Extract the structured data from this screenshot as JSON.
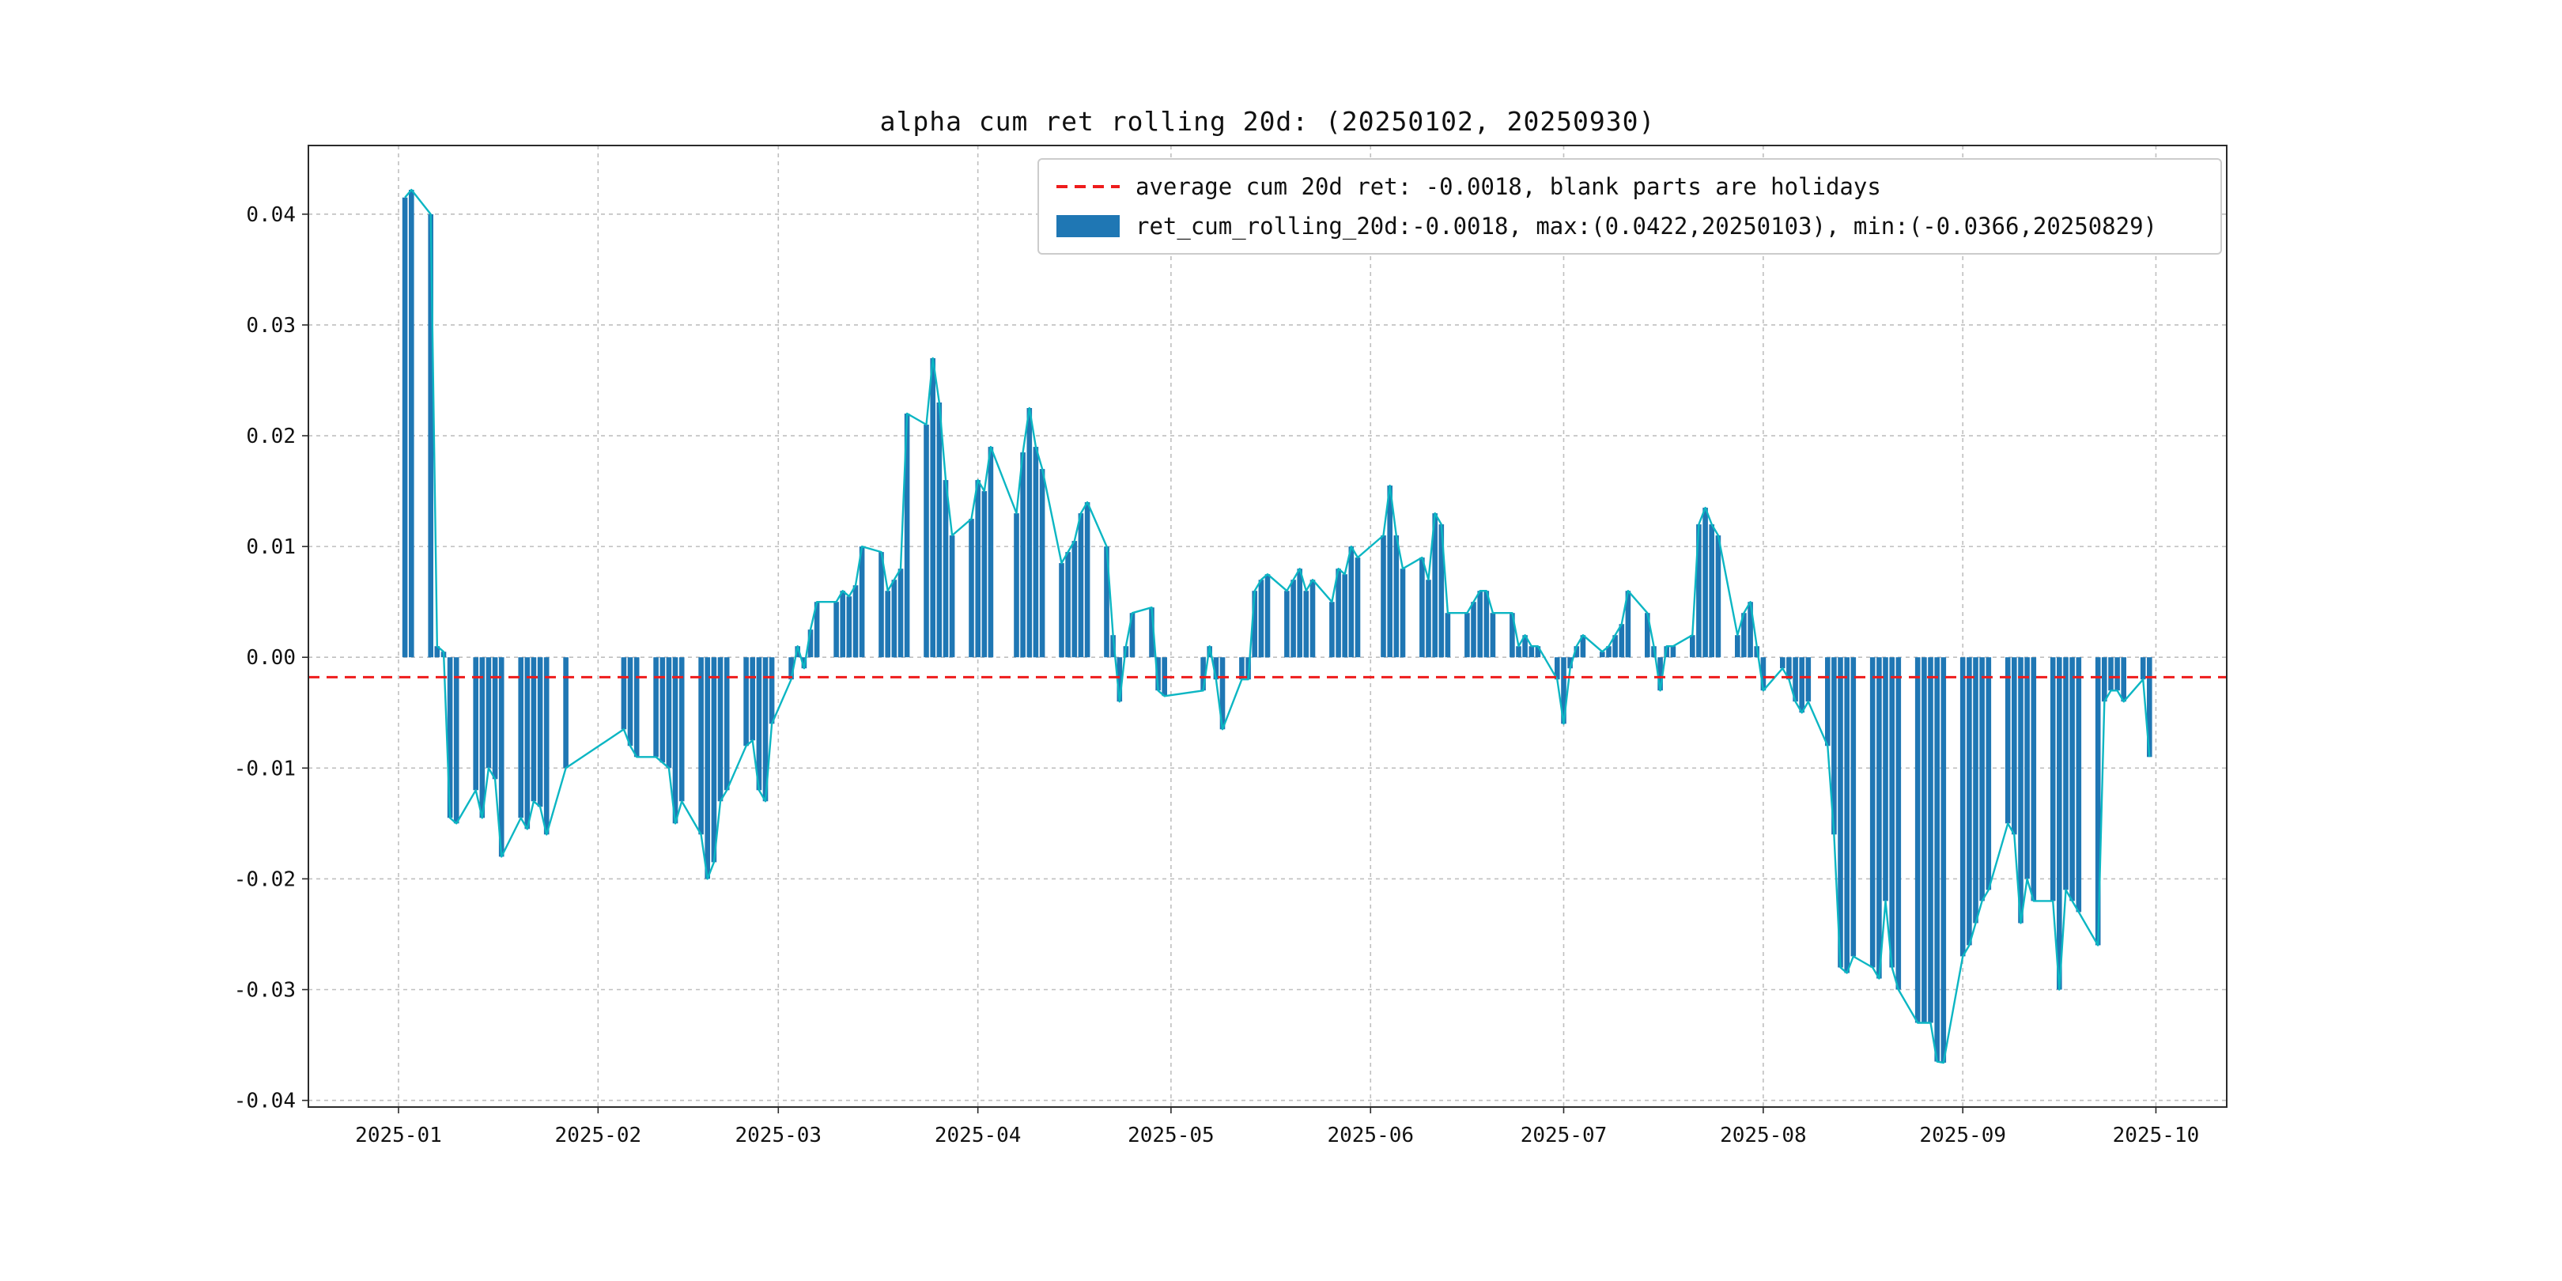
{
  "page": {
    "background": "#ffffff"
  },
  "chart_data": {
    "type": "bar",
    "title": "alpha cum ret rolling 20d: (20250102, 20250930)",
    "legend": [
      {
        "label": "average cum 20d ret: -0.0018, blank parts are holidays",
        "style": "dashed-line",
        "color": "#ee1c1c"
      },
      {
        "label": "ret_cum_rolling_20d:-0.0018, max:(0.0422,20250103), min:(-0.0366,20250829)",
        "style": "bar",
        "color": "#1f77b4"
      }
    ],
    "average": -0.0018,
    "max": {
      "value": 0.0422,
      "date": "20250103"
    },
    "min": {
      "value": -0.0366,
      "date": "20250829"
    },
    "bar_color": "#1f77b4",
    "line_color": "#0cb6c3",
    "avg_line_color": "#ee1c1c",
    "grid_color": "#bfbfbf",
    "spine_color": "#2b2b2b",
    "ylim": [
      -0.0406,
      0.0462
    ],
    "x_start": "2024-12-18",
    "x_total_days": 298,
    "y_ticks": [
      -0.04,
      -0.03,
      -0.02,
      -0.01,
      0,
      0.01,
      0.02,
      0.03,
      0.04
    ],
    "x_ticks": [
      {
        "date": "2025-01-01",
        "label": "2025-01"
      },
      {
        "date": "2025-02-01",
        "label": "2025-02"
      },
      {
        "date": "2025-03-01",
        "label": "2025-03"
      },
      {
        "date": "2025-04-01",
        "label": "2025-04"
      },
      {
        "date": "2025-05-01",
        "label": "2025-05"
      },
      {
        "date": "2025-06-01",
        "label": "2025-06"
      },
      {
        "date": "2025-07-01",
        "label": "2025-07"
      },
      {
        "date": "2025-08-01",
        "label": "2025-08"
      },
      {
        "date": "2025-09-01",
        "label": "2025-09"
      },
      {
        "date": "2025-10-01",
        "label": "2025-10"
      }
    ],
    "points": [
      [
        "2025-01-02",
        0.0415
      ],
      [
        "2025-01-03",
        0.0422
      ],
      [
        "2025-01-06",
        0.04
      ],
      [
        "2025-01-07",
        0.001
      ],
      [
        "2025-01-08",
        0.0005
      ],
      [
        "2025-01-09",
        -0.0145
      ],
      [
        "2025-01-10",
        -0.015
      ],
      [
        "2025-01-13",
        -0.012
      ],
      [
        "2025-01-14",
        -0.0145
      ],
      [
        "2025-01-15",
        -0.01
      ],
      [
        "2025-01-16",
        -0.011
      ],
      [
        "2025-01-17",
        -0.018
      ],
      [
        "2025-01-20",
        -0.0145
      ],
      [
        "2025-01-21",
        -0.0155
      ],
      [
        "2025-01-22",
        -0.013
      ],
      [
        "2025-01-23",
        -0.0135
      ],
      [
        "2025-01-24",
        -0.016
      ],
      [
        "2025-01-27",
        -0.01
      ],
      [
        "2025-02-05",
        -0.0065
      ],
      [
        "2025-02-06",
        -0.008
      ],
      [
        "2025-02-07",
        -0.009
      ],
      [
        "2025-02-10",
        -0.009
      ],
      [
        "2025-02-11",
        -0.0095
      ],
      [
        "2025-02-12",
        -0.01
      ],
      [
        "2025-02-13",
        -0.015
      ],
      [
        "2025-02-14",
        -0.013
      ],
      [
        "2025-02-17",
        -0.016
      ],
      [
        "2025-02-18",
        -0.02
      ],
      [
        "2025-02-19",
        -0.0185
      ],
      [
        "2025-02-20",
        -0.013
      ],
      [
        "2025-02-21",
        -0.012
      ],
      [
        "2025-02-24",
        -0.008
      ],
      [
        "2025-02-25",
        -0.0075
      ],
      [
        "2025-02-26",
        -0.012
      ],
      [
        "2025-02-27",
        -0.013
      ],
      [
        "2025-02-28",
        -0.006
      ],
      [
        "2025-03-03",
        -0.002
      ],
      [
        "2025-03-04",
        0.001
      ],
      [
        "2025-03-05",
        -0.001
      ],
      [
        "2025-03-06",
        0.0025
      ],
      [
        "2025-03-07",
        0.005
      ],
      [
        "2025-03-10",
        0.005
      ],
      [
        "2025-03-11",
        0.006
      ],
      [
        "2025-03-12",
        0.0055
      ],
      [
        "2025-03-13",
        0.0065
      ],
      [
        "2025-03-14",
        0.01
      ],
      [
        "2025-03-17",
        0.0095
      ],
      [
        "2025-03-18",
        0.006
      ],
      [
        "2025-03-19",
        0.007
      ],
      [
        "2025-03-20",
        0.008
      ],
      [
        "2025-03-21",
        0.022
      ],
      [
        "2025-03-24",
        0.021
      ],
      [
        "2025-03-25",
        0.027
      ],
      [
        "2025-03-26",
        0.023
      ],
      [
        "2025-03-27",
        0.016
      ],
      [
        "2025-03-28",
        0.011
      ],
      [
        "2025-03-31",
        0.0125
      ],
      [
        "2025-04-01",
        0.016
      ],
      [
        "2025-04-02",
        0.015
      ],
      [
        "2025-04-03",
        0.019
      ],
      [
        "2025-04-07",
        0.013
      ],
      [
        "2025-04-08",
        0.0185
      ],
      [
        "2025-04-09",
        0.0225
      ],
      [
        "2025-04-10",
        0.019
      ],
      [
        "2025-04-11",
        0.017
      ],
      [
        "2025-04-14",
        0.0085
      ],
      [
        "2025-04-15",
        0.0095
      ],
      [
        "2025-04-16",
        0.0105
      ],
      [
        "2025-04-17",
        0.013
      ],
      [
        "2025-04-18",
        0.014
      ],
      [
        "2025-04-21",
        0.01
      ],
      [
        "2025-04-22",
        0.002
      ],
      [
        "2025-04-23",
        -0.004
      ],
      [
        "2025-04-24",
        0.001
      ],
      [
        "2025-04-25",
        0.004
      ],
      [
        "2025-04-28",
        0.0045
      ],
      [
        "2025-04-29",
        -0.003
      ],
      [
        "2025-04-30",
        -0.0035
      ],
      [
        "2025-05-06",
        -0.003
      ],
      [
        "2025-05-07",
        0.001
      ],
      [
        "2025-05-08",
        -0.002
      ],
      [
        "2025-05-09",
        -0.0065
      ],
      [
        "2025-05-12",
        -0.002
      ],
      [
        "2025-05-13",
        -0.002
      ],
      [
        "2025-05-14",
        0.006
      ],
      [
        "2025-05-15",
        0.007
      ],
      [
        "2025-05-16",
        0.0075
      ],
      [
        "2025-05-19",
        0.006
      ],
      [
        "2025-05-20",
        0.007
      ],
      [
        "2025-05-21",
        0.008
      ],
      [
        "2025-05-22",
        0.006
      ],
      [
        "2025-05-23",
        0.007
      ],
      [
        "2025-05-26",
        0.005
      ],
      [
        "2025-05-27",
        0.008
      ],
      [
        "2025-05-28",
        0.0075
      ],
      [
        "2025-05-29",
        0.01
      ],
      [
        "2025-05-30",
        0.009
      ],
      [
        "2025-06-03",
        0.011
      ],
      [
        "2025-06-04",
        0.0155
      ],
      [
        "2025-06-05",
        0.011
      ],
      [
        "2025-06-06",
        0.008
      ],
      [
        "2025-06-09",
        0.009
      ],
      [
        "2025-06-10",
        0.007
      ],
      [
        "2025-06-11",
        0.013
      ],
      [
        "2025-06-12",
        0.012
      ],
      [
        "2025-06-13",
        0.004
      ],
      [
        "2025-06-16",
        0.004
      ],
      [
        "2025-06-17",
        0.005
      ],
      [
        "2025-06-18",
        0.006
      ],
      [
        "2025-06-19",
        0.006
      ],
      [
        "2025-06-20",
        0.004
      ],
      [
        "2025-06-23",
        0.004
      ],
      [
        "2025-06-24",
        0.001
      ],
      [
        "2025-06-25",
        0.002
      ],
      [
        "2025-06-26",
        0.001
      ],
      [
        "2025-06-27",
        0.001
      ],
      [
        "2025-06-30",
        -0.002
      ],
      [
        "2025-07-01",
        -0.006
      ],
      [
        "2025-07-02",
        -0.001
      ],
      [
        "2025-07-03",
        0.001
      ],
      [
        "2025-07-04",
        0.002
      ],
      [
        "2025-07-07",
        0.0005
      ],
      [
        "2025-07-08",
        0.001
      ],
      [
        "2025-07-09",
        0.002
      ],
      [
        "2025-07-10",
        0.003
      ],
      [
        "2025-07-11",
        0.006
      ],
      [
        "2025-07-14",
        0.004
      ],
      [
        "2025-07-15",
        0.001
      ],
      [
        "2025-07-16",
        -0.003
      ],
      [
        "2025-07-17",
        0.001
      ],
      [
        "2025-07-18",
        0.001
      ],
      [
        "2025-07-21",
        0.002
      ],
      [
        "2025-07-22",
        0.012
      ],
      [
        "2025-07-23",
        0.0135
      ],
      [
        "2025-07-24",
        0.012
      ],
      [
        "2025-07-25",
        0.011
      ],
      [
        "2025-07-28",
        0.002
      ],
      [
        "2025-07-29",
        0.004
      ],
      [
        "2025-07-30",
        0.005
      ],
      [
        "2025-07-31",
        0.001
      ],
      [
        "2025-08-01",
        -0.003
      ],
      [
        "2025-08-04",
        -0.001
      ],
      [
        "2025-08-05",
        -0.002
      ],
      [
        "2025-08-06",
        -0.004
      ],
      [
        "2025-08-07",
        -0.005
      ],
      [
        "2025-08-08",
        -0.004
      ],
      [
        "2025-08-11",
        -0.008
      ],
      [
        "2025-08-12",
        -0.016
      ],
      [
        "2025-08-13",
        -0.028
      ],
      [
        "2025-08-14",
        -0.0285
      ],
      [
        "2025-08-15",
        -0.027
      ],
      [
        "2025-08-18",
        -0.028
      ],
      [
        "2025-08-19",
        -0.029
      ],
      [
        "2025-08-20",
        -0.022
      ],
      [
        "2025-08-21",
        -0.028
      ],
      [
        "2025-08-22",
        -0.03
      ],
      [
        "2025-08-25",
        -0.033
      ],
      [
        "2025-08-26",
        -0.033
      ],
      [
        "2025-08-27",
        -0.033
      ],
      [
        "2025-08-28",
        -0.0365
      ],
      [
        "2025-08-29",
        -0.0366
      ],
      [
        "2025-09-01",
        -0.027
      ],
      [
        "2025-09-02",
        -0.026
      ],
      [
        "2025-09-03",
        -0.024
      ],
      [
        "2025-09-04",
        -0.022
      ],
      [
        "2025-09-05",
        -0.021
      ],
      [
        "2025-09-08",
        -0.015
      ],
      [
        "2025-09-09",
        -0.016
      ],
      [
        "2025-09-10",
        -0.024
      ],
      [
        "2025-09-11",
        -0.02
      ],
      [
        "2025-09-12",
        -0.022
      ],
      [
        "2025-09-15",
        -0.022
      ],
      [
        "2025-09-16",
        -0.03
      ],
      [
        "2025-09-17",
        -0.021
      ],
      [
        "2025-09-18",
        -0.022
      ],
      [
        "2025-09-19",
        -0.023
      ],
      [
        "2025-09-22",
        -0.026
      ],
      [
        "2025-09-23",
        -0.004
      ],
      [
        "2025-09-24",
        -0.003
      ],
      [
        "2025-09-25",
        -0.003
      ],
      [
        "2025-09-26",
        -0.004
      ],
      [
        "2025-09-29",
        -0.002
      ],
      [
        "2025-09-30",
        -0.009
      ]
    ]
  }
}
